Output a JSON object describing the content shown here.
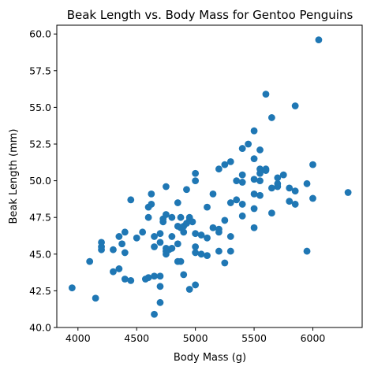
{
  "chart_data": {
    "type": "scatter",
    "title": "Beak Length vs. Body Mass for Gentoo Penguins",
    "xlabel": "Body Mass (g)",
    "ylabel": "Beak Length (mm)",
    "xlim": [
      3820,
      6420
    ],
    "ylim": [
      40.0,
      60.6
    ],
    "xticks": [
      4000,
      4500,
      5000,
      5500,
      6000
    ],
    "xtick_labels": [
      "4000",
      "4500",
      "5000",
      "5500",
      "6000"
    ],
    "yticks": [
      40.0,
      42.5,
      45.0,
      47.5,
      50.0,
      52.5,
      55.0,
      57.5,
      60.0
    ],
    "ytick_labels": [
      "40.0",
      "42.5",
      "45.0",
      "47.5",
      "50.0",
      "52.5",
      "55.0",
      "57.5",
      "60.0"
    ],
    "grid": false,
    "marker_color": "#1f77b4",
    "series": [
      {
        "points": [
          [
            3950,
            42.7
          ],
          [
            4100,
            44.5
          ],
          [
            4150,
            42.0
          ],
          [
            4200,
            45.3
          ],
          [
            4200,
            45.5
          ],
          [
            4200,
            45.8
          ],
          [
            4300,
            45.3
          ],
          [
            4300,
            43.8
          ],
          [
            4350,
            44.0
          ],
          [
            4350,
            46.2
          ],
          [
            4375,
            45.7
          ],
          [
            4400,
            46.5
          ],
          [
            4400,
            45.1
          ],
          [
            4400,
            43.3
          ],
          [
            4450,
            43.2
          ],
          [
            4450,
            48.7
          ],
          [
            4500,
            46.1
          ],
          [
            4550,
            46.5
          ],
          [
            4575,
            43.3
          ],
          [
            4600,
            43.4
          ],
          [
            4600,
            47.5
          ],
          [
            4600,
            48.2
          ],
          [
            4625,
            49.1
          ],
          [
            4625,
            48.4
          ],
          [
            4650,
            46.2
          ],
          [
            4650,
            45.5
          ],
          [
            4650,
            43.5
          ],
          [
            4650,
            40.9
          ],
          [
            4700,
            43.5
          ],
          [
            4700,
            45.8
          ],
          [
            4700,
            46.4
          ],
          [
            4700,
            42.8
          ],
          [
            4700,
            41.7
          ],
          [
            4725,
            47.2
          ],
          [
            4725,
            47.4
          ],
          [
            4750,
            47.7
          ],
          [
            4750,
            49.6
          ],
          [
            4750,
            45.2
          ],
          [
            4750,
            45.4
          ],
          [
            4750,
            45.0
          ],
          [
            4775,
            45.3
          ],
          [
            4800,
            45.4
          ],
          [
            4800,
            46.2
          ],
          [
            4800,
            47.5
          ],
          [
            4850,
            44.5
          ],
          [
            4850,
            45.7
          ],
          [
            4850,
            46.9
          ],
          [
            4850,
            48.5
          ],
          [
            4875,
            44.5
          ],
          [
            4875,
            46.8
          ],
          [
            4875,
            47.5
          ],
          [
            4900,
            43.6
          ],
          [
            4900,
            46.5
          ],
          [
            4900,
            46.9
          ],
          [
            4925,
            47.1
          ],
          [
            4925,
            49.4
          ],
          [
            4950,
            47.3
          ],
          [
            4950,
            47.5
          ],
          [
            4950,
            42.6
          ],
          [
            4975,
            47.2
          ],
          [
            5000,
            42.9
          ],
          [
            5000,
            45.1
          ],
          [
            5000,
            45.5
          ],
          [
            5000,
            46.4
          ],
          [
            5000,
            50.0
          ],
          [
            5000,
            50.5
          ],
          [
            5050,
            45.0
          ],
          [
            5050,
            46.3
          ],
          [
            5100,
            44.9
          ],
          [
            5100,
            46.1
          ],
          [
            5100,
            48.2
          ],
          [
            5150,
            46.8
          ],
          [
            5150,
            49.1
          ],
          [
            5200,
            45.2
          ],
          [
            5200,
            46.5
          ],
          [
            5200,
            46.7
          ],
          [
            5200,
            50.8
          ],
          [
            5250,
            44.4
          ],
          [
            5250,
            47.3
          ],
          [
            5250,
            51.1
          ],
          [
            5300,
            45.2
          ],
          [
            5300,
            46.2
          ],
          [
            5300,
            48.5
          ],
          [
            5300,
            51.3
          ],
          [
            5350,
            48.7
          ],
          [
            5350,
            50.0
          ],
          [
            5400,
            47.6
          ],
          [
            5400,
            48.4
          ],
          [
            5400,
            49.9
          ],
          [
            5400,
            50.4
          ],
          [
            5400,
            52.2
          ],
          [
            5450,
            52.5
          ],
          [
            5500,
            46.8
          ],
          [
            5500,
            48.1
          ],
          [
            5500,
            49.1
          ],
          [
            5500,
            50.1
          ],
          [
            5500,
            51.5
          ],
          [
            5500,
            53.4
          ],
          [
            5550,
            49.0
          ],
          [
            5550,
            50.0
          ],
          [
            5550,
            50.5
          ],
          [
            5550,
            50.8
          ],
          [
            5550,
            52.1
          ],
          [
            5600,
            50.7
          ],
          [
            5600,
            50.8
          ],
          [
            5600,
            55.9
          ],
          [
            5650,
            47.8
          ],
          [
            5650,
            49.5
          ],
          [
            5650,
            54.3
          ],
          [
            5700,
            49.6
          ],
          [
            5700,
            49.8
          ],
          [
            5700,
            50.2
          ],
          [
            5750,
            50.4
          ],
          [
            5800,
            48.6
          ],
          [
            5800,
            49.5
          ],
          [
            5850,
            48.4
          ],
          [
            5850,
            49.3
          ],
          [
            5850,
            55.1
          ],
          [
            5950,
            45.2
          ],
          [
            5950,
            49.8
          ],
          [
            6000,
            48.8
          ],
          [
            6000,
            51.1
          ],
          [
            6050,
            59.6
          ],
          [
            6300,
            49.2
          ]
        ]
      }
    ]
  }
}
